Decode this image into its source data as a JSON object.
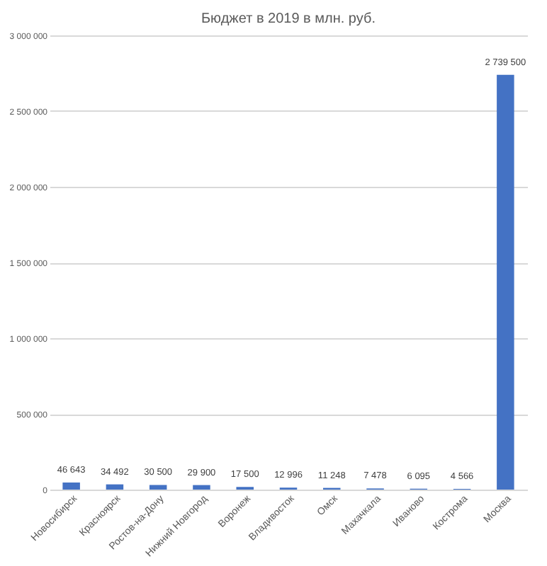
{
  "chart_data": {
    "type": "bar",
    "title": "Бюджет в 2019 в млн. руб.",
    "categories": [
      "Новосибирск",
      "Красноярск",
      "Ростов-на-Дону",
      "Нижний Новгород",
      "Воронеж",
      "Владивосток",
      "Омск",
      "Махачкала",
      "Иваново",
      "Кострома",
      "Москва"
    ],
    "values": [
      46643,
      34492,
      30500,
      29900,
      17500,
      12996,
      11248,
      7478,
      6095,
      4566,
      2739500
    ],
    "value_labels": [
      "46 643",
      "34 492",
      "30 500",
      "29 900",
      "17 500",
      "12 996",
      "11 248",
      "7 478",
      "6 095",
      "4 566",
      "2 739 500"
    ],
    "color": "#4472c4",
    "ylim": [
      0,
      3000000
    ],
    "yticks": [
      0,
      {
        "value": 500000,
        "label": "500 000"
      },
      {
        "value": 1000000,
        "label": "1 000 000"
      },
      {
        "value": 1500000,
        "label": "1 500 000"
      },
      {
        "value": 2000000,
        "label": "2 000 000"
      },
      {
        "value": 2500000,
        "label": "2 500 000"
      },
      {
        "value": 3000000,
        "label": "3 000 000"
      }
    ],
    "grid": "y"
  }
}
